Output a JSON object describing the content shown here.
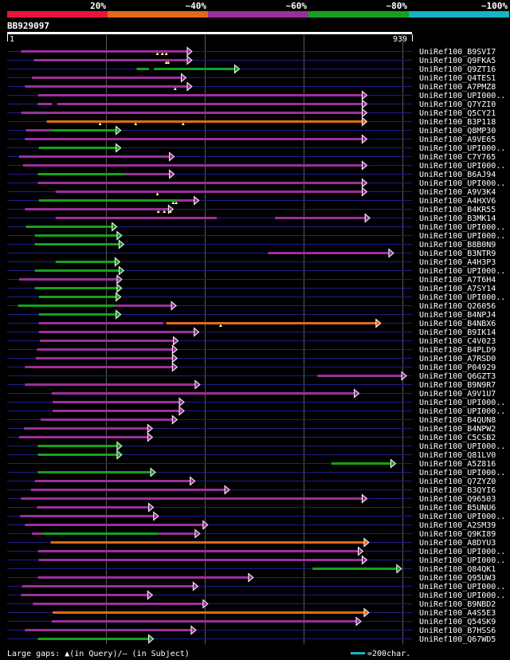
{
  "chart_data": {
    "type": "alignment-overview",
    "query_id": "BB929097",
    "scale_start": "1",
    "scale_end": "939",
    "query_length": 939,
    "identity_bands": [
      {
        "label": "20%",
        "color": "#e8173a"
      },
      {
        "label": "~40%",
        "color": "#e06a1a"
      },
      {
        "label": "~60%",
        "color": "#9b2f9b"
      },
      {
        "label": "~80%",
        "color": "#16a01e"
      },
      {
        "label": "~100%",
        "color": "#14b4c4"
      }
    ],
    "legend": {
      "gaps_text": "Large gaps: ▲(in Query)/– (in Subject)",
      "scale_text": "=200char.",
      "scale_color": "#18b4c8"
    },
    "hits": [
      {
        "name": "UniRef100_B9SVI7",
        "segments": [
          [
            70,
            935,
            "m"
          ]
        ],
        "query_gaps": [
          760,
          785,
          805
        ],
        "subject_gaps": []
      },
      {
        "name": "UniRef100_Q9FKA5",
        "segments": [
          [
            135,
            935,
            "m"
          ]
        ],
        "query_gaps": [
          805,
          815
        ],
        "subject_gaps": []
      },
      {
        "name": "UniRef100_Q9ZT16",
        "segments": [
          [
            655,
            805,
            "g"
          ],
          [
            805,
            1175,
            "g"
          ]
        ],
        "query_gaps": [],
        "subject_gaps": [
          730
        ]
      },
      {
        "name": "UniRef100_Q4TES1",
        "segments": [
          [
            125,
            905,
            "m"
          ]
        ],
        "query_gaps": [],
        "subject_gaps": []
      },
      {
        "name": "UniRef100_A7PMZ8",
        "segments": [
          [
            90,
            935,
            "m"
          ]
        ],
        "query_gaps": [
          850
        ],
        "subject_gaps": []
      },
      {
        "name": "UniRef100_UPI000..",
        "segments": [
          [
            155,
            1820,
            "m"
          ]
        ],
        "query_gaps": [],
        "subject_gaps": []
      },
      {
        "name": "UniRef100_Q7YZI0",
        "segments": [
          [
            155,
            1820,
            "m"
          ]
        ],
        "query_gaps": [],
        "subject_gaps": [
          240
        ]
      },
      {
        "name": "UniRef100_Q5CY21",
        "segments": [
          [
            70,
            1820,
            "m"
          ]
        ],
        "query_gaps": [],
        "subject_gaps": []
      },
      {
        "name": "UniRef100_B3P118",
        "segments": [
          [
            200,
            1820,
            "o"
          ]
        ],
        "query_gaps": [
          470,
          650,
          890
        ],
        "subject_gaps": []
      },
      {
        "name": "UniRef100_Q8MP30",
        "segments": [
          [
            95,
            225,
            "m"
          ],
          [
            225,
            575,
            "g"
          ]
        ],
        "query_gaps": [],
        "subject_gaps": []
      },
      {
        "name": "UniRef100_A9VE65",
        "segments": [
          [
            90,
            1820,
            "m"
          ]
        ],
        "query_gaps": [],
        "subject_gaps": []
      },
      {
        "name": "UniRef100_UPI000..",
        "segments": [
          [
            160,
            575,
            "g"
          ]
        ],
        "query_gaps": [],
        "subject_gaps": []
      },
      {
        "name": "UniRef100_C7Y765",
        "segments": [
          [
            60,
            845,
            "m"
          ]
        ],
        "query_gaps": [],
        "subject_gaps": []
      },
      {
        "name": "UniRef100_UPI000..",
        "segments": [
          [
            80,
            1820,
            "m"
          ]
        ],
        "query_gaps": [],
        "subject_gaps": []
      },
      {
        "name": "UniRef100_B6AJ94",
        "segments": [
          [
            155,
            595,
            "g"
          ],
          [
            595,
            845,
            "m"
          ]
        ],
        "query_gaps": [],
        "subject_gaps": []
      },
      {
        "name": "UniRef100_UPI000..",
        "segments": [
          [
            155,
            1820,
            "m"
          ]
        ],
        "query_gaps": [],
        "subject_gaps": []
      },
      {
        "name": "UniRef100_A9V3K4",
        "segments": [
          [
            245,
            1820,
            "m"
          ]
        ],
        "query_gaps": [
          760
        ],
        "subject_gaps": []
      },
      {
        "name": "UniRef100_A4HXV6",
        "segments": [
          [
            160,
            860,
            "g"
          ],
          [
            860,
            970,
            "m"
          ]
        ],
        "query_gaps": [
          840,
          855
        ],
        "subject_gaps": []
      },
      {
        "name": "UniRef100_B4KR55",
        "segments": [
          [
            90,
            840,
            "m"
          ]
        ],
        "query_gaps": [
          765,
          795,
          825
        ],
        "subject_gaps": []
      },
      {
        "name": "UniRef100_B3MK14",
        "segments": [
          [
            245,
            1060,
            "m"
          ],
          [
            1355,
            1835,
            "m"
          ]
        ],
        "query_gaps": [],
        "subject_gaps": []
      },
      {
        "name": "UniRef100_UPI000..",
        "segments": [
          [
            95,
            555,
            "g"
          ]
        ],
        "query_gaps": [],
        "subject_gaps": []
      },
      {
        "name": "UniRef100_UPI000..",
        "segments": [
          [
            140,
            580,
            "g"
          ]
        ],
        "query_gaps": [],
        "subject_gaps": []
      },
      {
        "name": "UniRef100_B8B0N9",
        "segments": [
          [
            140,
            590,
            "g"
          ]
        ],
        "query_gaps": [],
        "subject_gaps": []
      },
      {
        "name": "UniRef100_B3NTR9",
        "segments": [
          [
            1320,
            1955,
            "m"
          ]
        ],
        "query_gaps": [],
        "subject_gaps": []
      },
      {
        "name": "UniRef100_A4H3P3",
        "segments": [
          [
            245,
            570,
            "g"
          ]
        ],
        "query_gaps": [],
        "subject_gaps": []
      },
      {
        "name": "UniRef100_UPI000..",
        "segments": [
          [
            140,
            590,
            "g"
          ]
        ],
        "query_gaps": [],
        "subject_gaps": []
      },
      {
        "name": "UniRef100_A7T6H4",
        "segments": [
          [
            60,
            580,
            "m"
          ]
        ],
        "query_gaps": [],
        "subject_gaps": []
      },
      {
        "name": "UniRef100_A7SY14",
        "segments": [
          [
            140,
            580,
            "g"
          ]
        ],
        "query_gaps": [],
        "subject_gaps": []
      },
      {
        "name": "UniRef100_UPI000..",
        "segments": [
          [
            160,
            575,
            "g"
          ]
        ],
        "query_gaps": [],
        "subject_gaps": []
      },
      {
        "name": "UniRef100_Q26056",
        "segments": [
          [
            55,
            545,
            "g"
          ],
          [
            545,
            855,
            "m"
          ]
        ],
        "query_gaps": [],
        "subject_gaps": []
      },
      {
        "name": "UniRef100_B4NPJ4",
        "segments": [
          [
            160,
            575,
            "g"
          ]
        ],
        "query_gaps": [],
        "subject_gaps": []
      },
      {
        "name": "UniRef100_B4NBX6",
        "segments": [
          [
            160,
            790,
            "m"
          ],
          [
            805,
            1890,
            "o"
          ]
        ],
        "query_gaps": [
          1080
        ],
        "subject_gaps": []
      },
      {
        "name": "UniRef100_B9IK14",
        "segments": [
          [
            160,
            970,
            "m"
          ]
        ],
        "query_gaps": [],
        "subject_gaps": []
      },
      {
        "name": "UniRef100_C4V023",
        "segments": [
          [
            165,
            865,
            "m"
          ]
        ],
        "query_gaps": [],
        "subject_gaps": []
      },
      {
        "name": "UniRef100_B4PLD9",
        "segments": [
          [
            150,
            860,
            "m"
          ]
        ],
        "query_gaps": [],
        "subject_gaps": []
      },
      {
        "name": "UniRef100_A7RSD0",
        "segments": [
          [
            145,
            860,
            "m"
          ]
        ],
        "query_gaps": [],
        "subject_gaps": []
      },
      {
        "name": "UniRef100_P04929",
        "segments": [
          [
            90,
            860,
            "m"
          ]
        ],
        "query_gaps": [],
        "subject_gaps": []
      },
      {
        "name": "UniRef100_Q6GZT3",
        "segments": [
          [
            1570,
            2020,
            "m"
          ]
        ],
        "query_gaps": [],
        "subject_gaps": []
      },
      {
        "name": "UniRef100_B9N9R7",
        "segments": [
          [
            90,
            975,
            "m"
          ]
        ],
        "query_gaps": [],
        "subject_gaps": []
      },
      {
        "name": "UniRef100_A9V1U7",
        "segments": [
          [
            225,
            1780,
            "m"
          ]
        ],
        "query_gaps": [],
        "subject_gaps": []
      },
      {
        "name": "UniRef100_UPI000..",
        "segments": [
          [
            230,
            895,
            "m"
          ]
        ],
        "query_gaps": [],
        "subject_gaps": []
      },
      {
        "name": "UniRef100_UPI000..",
        "segments": [
          [
            230,
            895,
            "m"
          ]
        ],
        "query_gaps": [],
        "subject_gaps": []
      },
      {
        "name": "UniRef100_B4QUN8",
        "segments": [
          [
            170,
            860,
            "m"
          ]
        ],
        "query_gaps": [],
        "subject_gaps": []
      },
      {
        "name": "UniRef100_B4NPW2",
        "segments": [
          [
            85,
            735,
            "m"
          ]
        ],
        "query_gaps": [],
        "subject_gaps": []
      },
      {
        "name": "UniRef100_C5CSB2",
        "segments": [
          [
            60,
            735,
            "m"
          ]
        ],
        "query_gaps": [],
        "subject_gaps": []
      },
      {
        "name": "UniRef100_UPI000..",
        "segments": [
          [
            155,
            580,
            "g"
          ]
        ],
        "query_gaps": [],
        "subject_gaps": []
      },
      {
        "name": "UniRef100_Q81LV0",
        "segments": [
          [
            155,
            580,
            "g"
          ]
        ],
        "query_gaps": [],
        "subject_gaps": []
      },
      {
        "name": "UniRef100_A5Z816",
        "segments": [
          [
            1640,
            1965,
            "g"
          ]
        ],
        "query_gaps": [],
        "subject_gaps": []
      },
      {
        "name": "UniRef100_UPI000..",
        "segments": [
          [
            155,
            750,
            "g"
          ]
        ],
        "query_gaps": [],
        "subject_gaps": []
      },
      {
        "name": "UniRef100_Q7ZYZ0",
        "segments": [
          [
            140,
            950,
            "m"
          ]
        ],
        "query_gaps": [],
        "subject_gaps": []
      },
      {
        "name": "UniRef100_B3QYI6",
        "segments": [
          [
            120,
            1125,
            "m"
          ]
        ],
        "query_gaps": [],
        "subject_gaps": []
      },
      {
        "name": "UniRef100_Q96503",
        "segments": [
          [
            70,
            1820,
            "m"
          ]
        ],
        "query_gaps": [],
        "subject_gaps": []
      },
      {
        "name": "UniRef100_B5UNU6",
        "segments": [
          [
            150,
            740,
            "m"
          ]
        ],
        "query_gaps": [],
        "subject_gaps": []
      },
      {
        "name": "UniRef100_UPI000..",
        "segments": [
          [
            65,
            765,
            "m"
          ]
        ],
        "query_gaps": [],
        "subject_gaps": []
      },
      {
        "name": "UniRef100_A2SM39",
        "segments": [
          [
            90,
            1015,
            "m"
          ]
        ],
        "query_gaps": [],
        "subject_gaps": []
      },
      {
        "name": "UniRef100_Q9KI89",
        "segments": [
          [
            125,
            180,
            "m"
          ],
          [
            180,
            765,
            "g"
          ],
          [
            765,
            975,
            "m"
          ]
        ],
        "query_gaps": [],
        "subject_gaps": []
      },
      {
        "name": "UniRef100_A8DYU3",
        "segments": [
          [
            220,
            1830,
            "o"
          ]
        ],
        "query_gaps": [],
        "subject_gaps": []
      },
      {
        "name": "UniRef100_UPI000..",
        "segments": [
          [
            155,
            1800,
            "m"
          ]
        ],
        "query_gaps": [],
        "subject_gaps": []
      },
      {
        "name": "UniRef100_UPI000..",
        "segments": [
          [
            160,
            1820,
            "m"
          ]
        ],
        "query_gaps": [],
        "subject_gaps": []
      },
      {
        "name": "UniRef100_Q84QK1",
        "segments": [
          [
            1545,
            1995,
            "g"
          ]
        ],
        "query_gaps": [],
        "subject_gaps": []
      },
      {
        "name": "UniRef100_Q95UW3",
        "segments": [
          [
            155,
            1245,
            "m"
          ]
        ],
        "query_gaps": [],
        "subject_gaps": []
      },
      {
        "name": "UniRef100_UPI000..",
        "segments": [
          [
            75,
            965,
            "m"
          ]
        ],
        "query_gaps": [],
        "subject_gaps": []
      },
      {
        "name": "UniRef100_UPI000..",
        "segments": [
          [
            70,
            735,
            "m"
          ]
        ],
        "query_gaps": [],
        "subject_gaps": []
      },
      {
        "name": "UniRef100_B9NBD2",
        "segments": [
          [
            130,
            1015,
            "m"
          ]
        ],
        "query_gaps": [],
        "subject_gaps": []
      },
      {
        "name": "UniRef100_A4S5E3",
        "segments": [
          [
            230,
            1830,
            "o"
          ]
        ],
        "query_gaps": [],
        "subject_gaps": []
      },
      {
        "name": "UniRef100_Q54SK9",
        "segments": [
          [
            225,
            1790,
            "m"
          ]
        ],
        "query_gaps": [],
        "subject_gaps": []
      },
      {
        "name": "UniRef100_B7HSS6",
        "segments": [
          [
            90,
            955,
            "m"
          ]
        ],
        "query_gaps": [],
        "subject_gaps": []
      },
      {
        "name": "UniRef100_Q67WD5",
        "segments": [
          [
            155,
            740,
            "g"
          ]
        ],
        "query_gaps": [],
        "subject_gaps": []
      }
    ]
  }
}
